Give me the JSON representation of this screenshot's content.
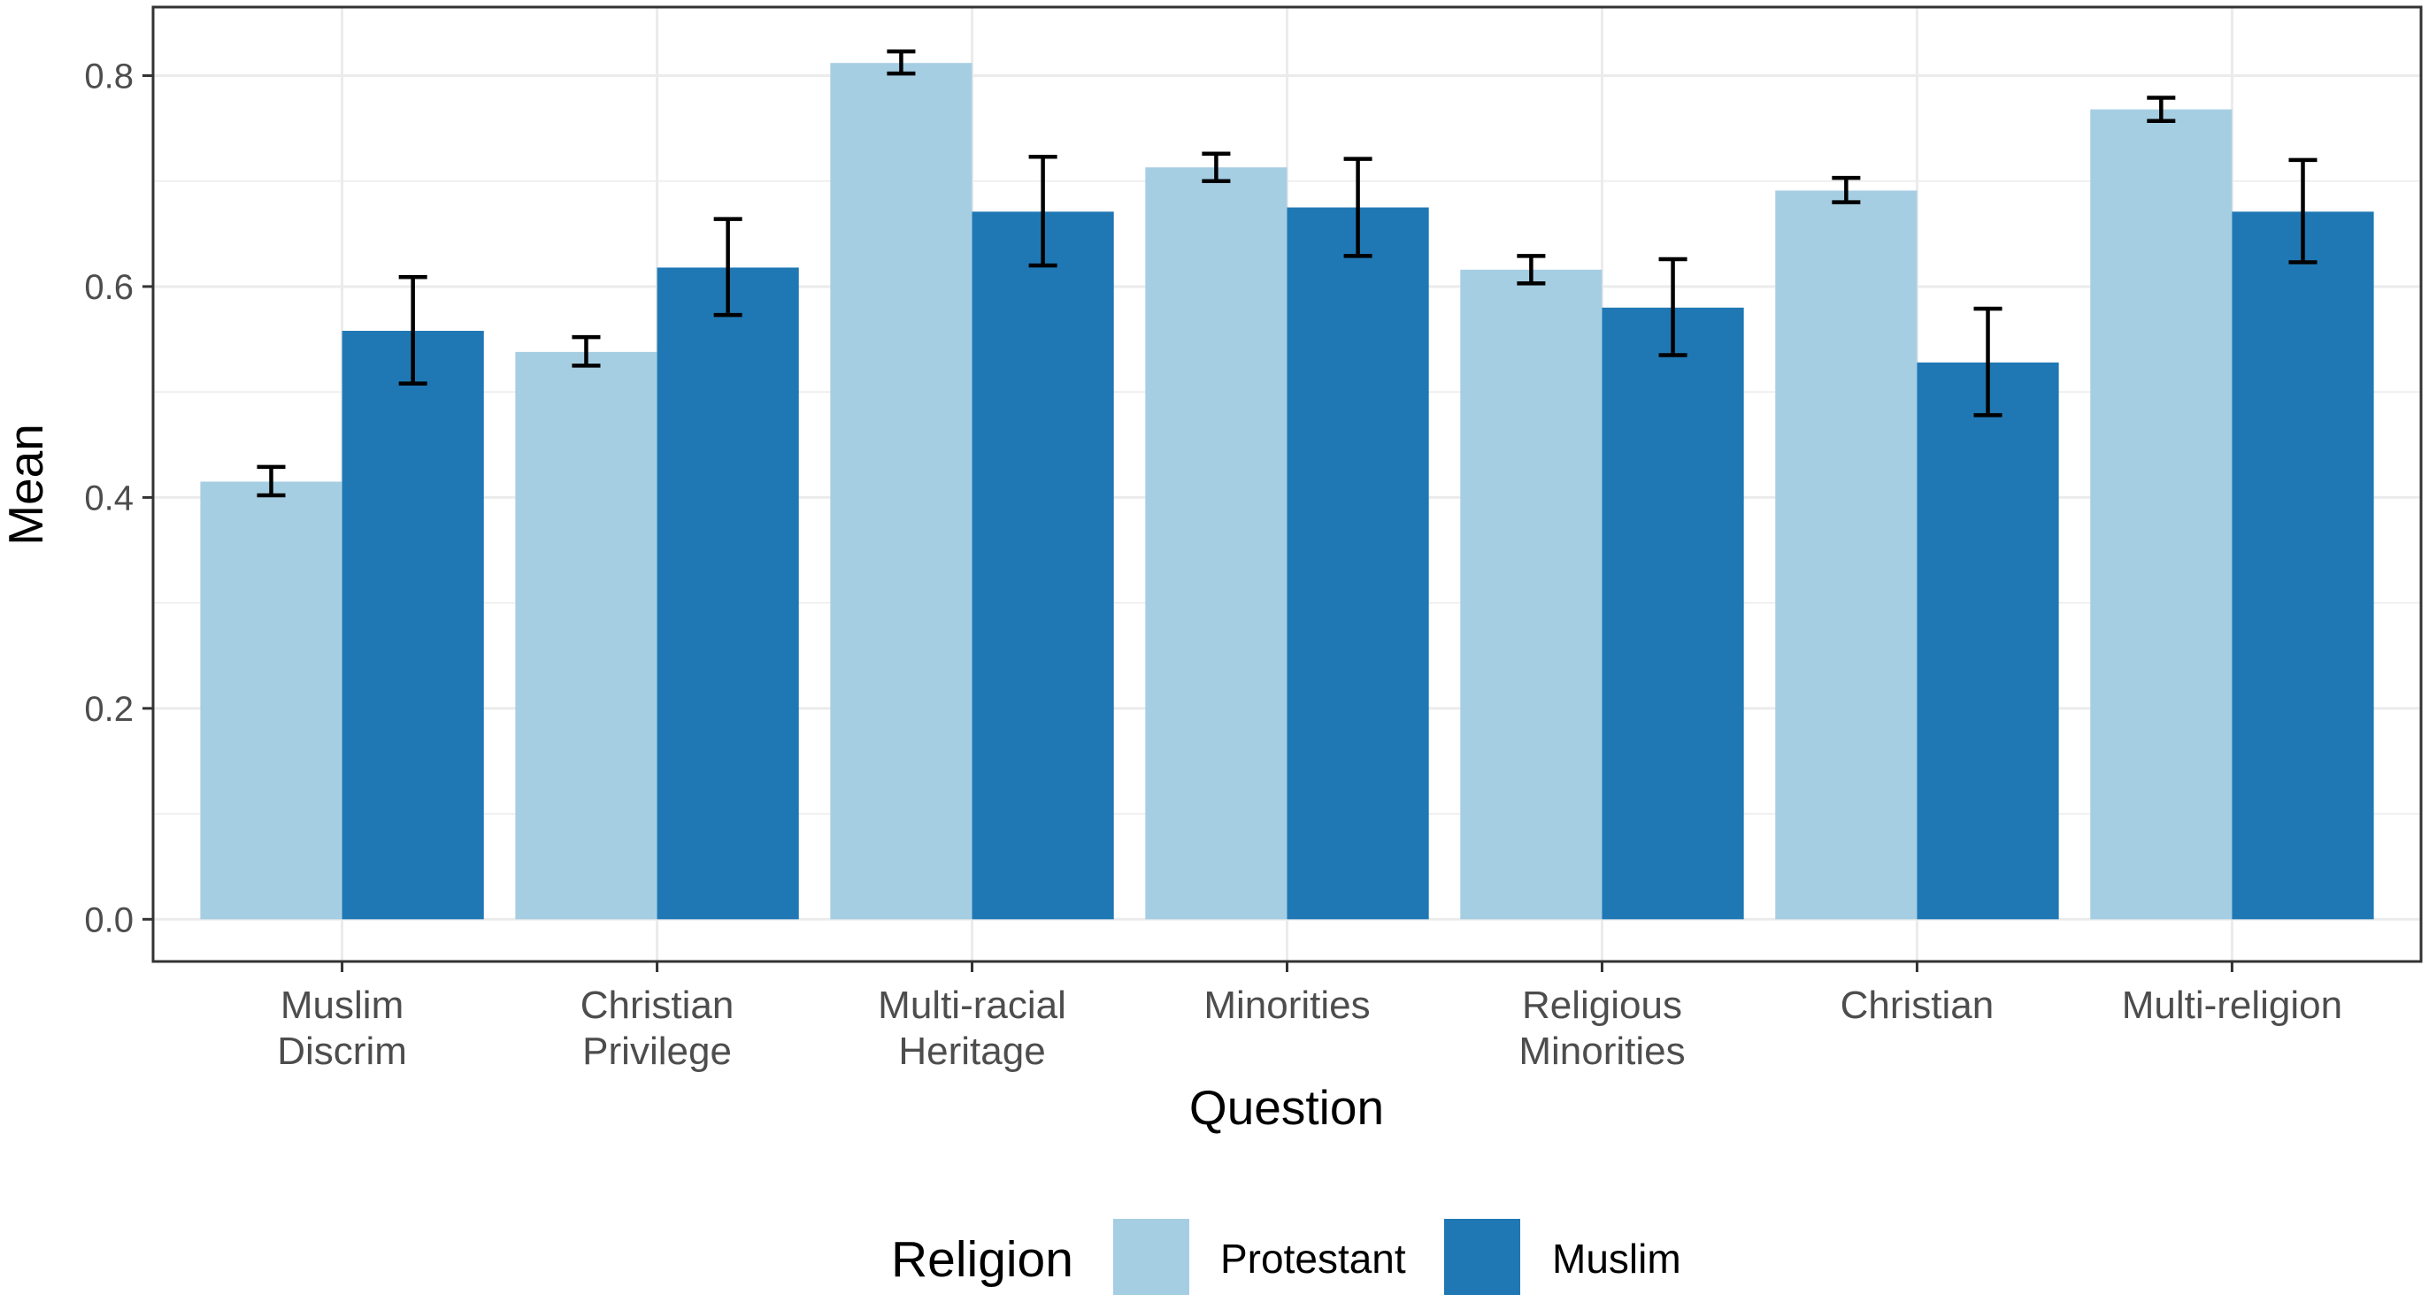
{
  "chart_data": {
    "type": "bar",
    "xlabel": "Question",
    "ylabel": "Mean",
    "ylim": [
      -0.04,
      0.865
    ],
    "yticks": [
      0.0,
      0.2,
      0.4,
      0.6,
      0.8
    ],
    "ytick_labels": [
      "0.0",
      "0.2",
      "0.4",
      "0.6",
      "0.8"
    ],
    "grid": true,
    "categories": [
      [
        "Muslim",
        "Discrim"
      ],
      [
        "Christian",
        "Privilege"
      ],
      [
        "Multi-racial",
        "Heritage"
      ],
      [
        "Minorities"
      ],
      [
        "Religious",
        "Minorities"
      ],
      [
        "Christian"
      ],
      [
        "Multi-religion"
      ]
    ],
    "series": [
      {
        "name": "Protestant",
        "color": "#a6cee3",
        "values": [
          0.415,
          0.538,
          0.812,
          0.713,
          0.616,
          0.691,
          0.768
        ],
        "error_low": [
          0.402,
          0.525,
          0.802,
          0.7,
          0.603,
          0.68,
          0.757
        ],
        "error_high": [
          0.429,
          0.552,
          0.823,
          0.726,
          0.629,
          0.703,
          0.779
        ]
      },
      {
        "name": "Muslim",
        "color": "#1f78b4",
        "values": [
          0.558,
          0.618,
          0.671,
          0.675,
          0.58,
          0.528,
          0.671
        ],
        "error_low": [
          0.508,
          0.573,
          0.62,
          0.629,
          0.535,
          0.478,
          0.623
        ],
        "error_high": [
          0.609,
          0.664,
          0.723,
          0.721,
          0.626,
          0.579,
          0.72
        ]
      }
    ],
    "legend": {
      "title": "Religion",
      "position": "bottom"
    }
  }
}
